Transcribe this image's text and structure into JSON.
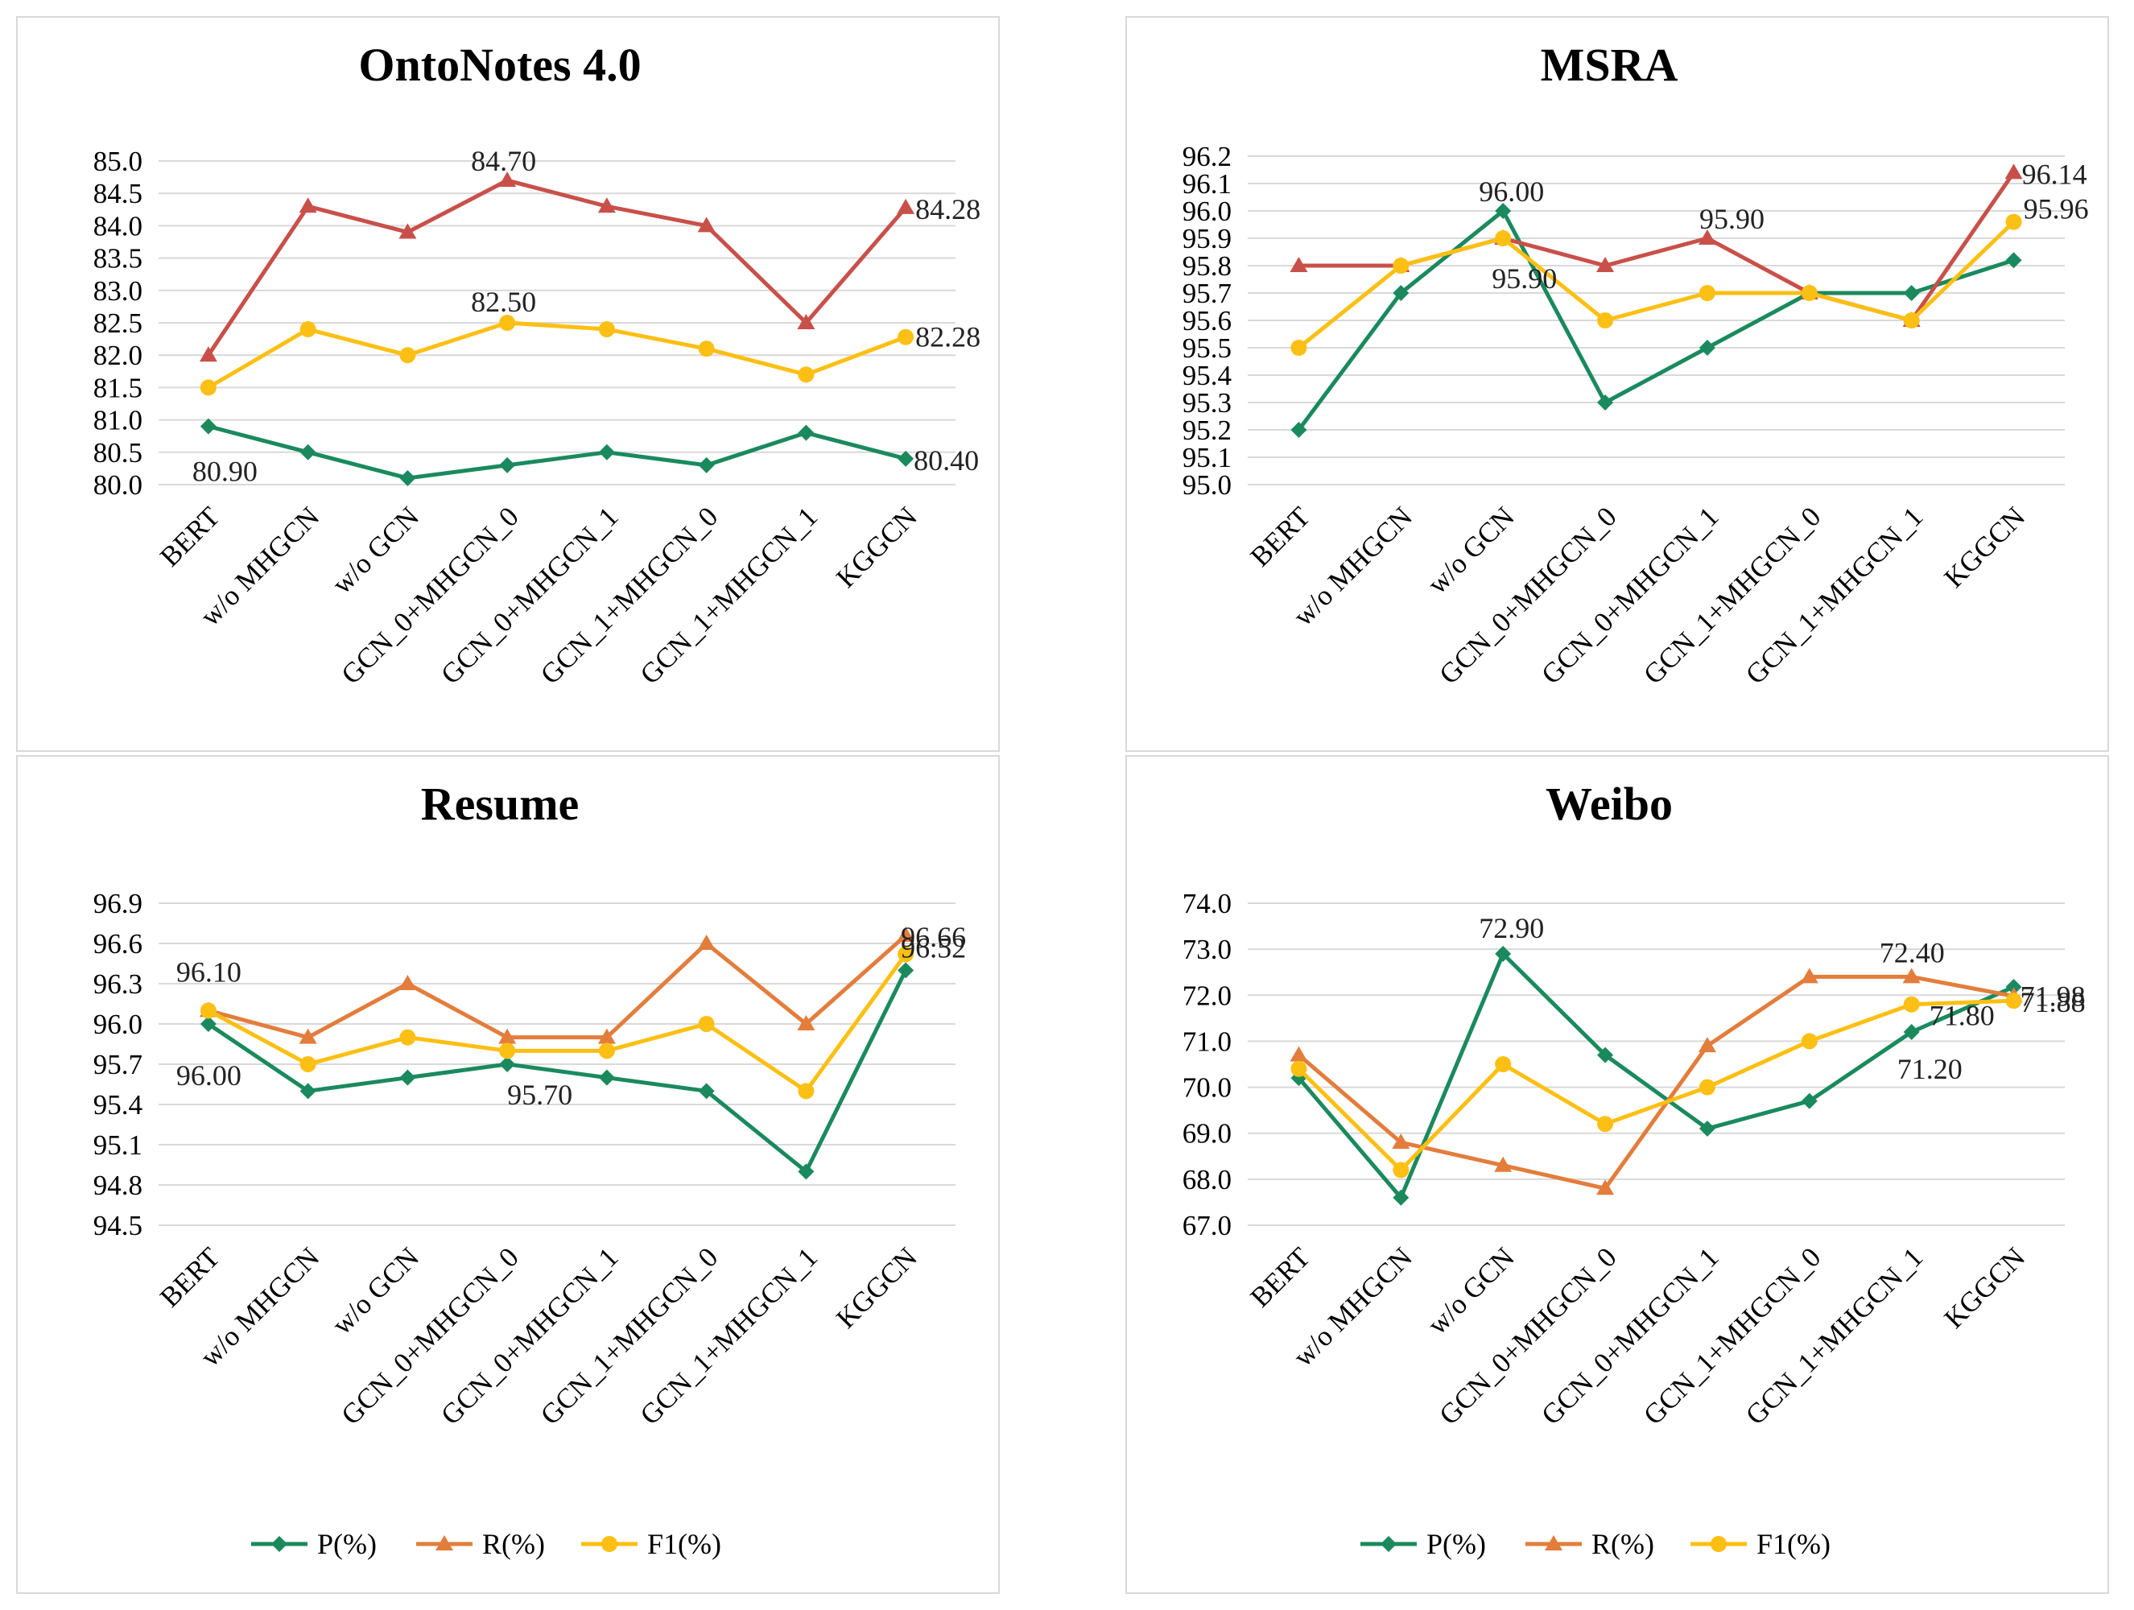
{
  "colors": {
    "p": "#1a8a5e",
    "r_onto": "#c9504a",
    "r": "#e37d3c",
    "f1": "#fcbf13",
    "grid": "#d9d9d9",
    "border": "#d9d9d9"
  },
  "chart_data": [
    {
      "id": "ontonotes",
      "type": "line",
      "title": "OntoNotes 4.0",
      "categories": [
        "BERT",
        "w/o MHGCN",
        "w/o GCN",
        "GCN_0+MHGCN_0",
        "GCN_0+MHGCN_1",
        "GCN_1+MHGCN_0",
        "GCN_1+MHGCN_1",
        "KGGCN"
      ],
      "ylim": [
        80.0,
        85.0
      ],
      "yticks": [
        "80.0",
        "80.5",
        "81.0",
        "81.5",
        "82.0",
        "82.5",
        "83.0",
        "83.5",
        "84.0",
        "84.5",
        "85.0"
      ],
      "legend": false,
      "series": [
        {
          "name": "P(%)",
          "color_key": "p",
          "marker": "diamond",
          "values": [
            80.9,
            80.5,
            80.1,
            80.3,
            80.5,
            80.3,
            80.8,
            80.4
          ]
        },
        {
          "name": "R(%)",
          "color_key": "r_onto",
          "marker": "triangle",
          "values": [
            82.0,
            84.3,
            83.9,
            84.7,
            84.3,
            84.0,
            82.5,
            84.28
          ]
        },
        {
          "name": "F1(%)",
          "color_key": "f1",
          "marker": "circle",
          "values": [
            81.5,
            82.4,
            82.0,
            82.5,
            82.4,
            82.1,
            81.7,
            82.28
          ]
        }
      ],
      "annotations": [
        {
          "text": "80.90",
          "series": 0,
          "index": 0,
          "dx": -20,
          "dy": 68
        },
        {
          "text": "80.40",
          "series": 0,
          "index": 7,
          "dx": 10,
          "dy": 14
        },
        {
          "text": "84.70",
          "series": 1,
          "index": 3,
          "dx": -45,
          "dy": -12
        },
        {
          "text": "84.28",
          "series": 1,
          "index": 7,
          "dx": 12,
          "dy": 14
        },
        {
          "text": "82.50",
          "series": 2,
          "index": 3,
          "dx": -45,
          "dy": -14
        },
        {
          "text": "82.28",
          "series": 2,
          "index": 7,
          "dx": 12,
          "dy": 12
        }
      ]
    },
    {
      "id": "msra",
      "type": "line",
      "title": "MSRA",
      "categories": [
        "BERT",
        "w/o MHGCN",
        "w/o GCN",
        "GCN_0+MHGCN_0",
        "GCN_0+MHGCN_1",
        "GCN_1+MHGCN_0",
        "GCN_1+MHGCN_1",
        "KGGCN"
      ],
      "ylim": [
        95.0,
        96.2
      ],
      "yticks": [
        "95.0",
        "95.1",
        "95.2",
        "95.3",
        "95.4",
        "95.5",
        "95.6",
        "95.7",
        "95.8",
        "95.9",
        "96.0",
        "96.1",
        "96.2"
      ],
      "legend": false,
      "series": [
        {
          "name": "P(%)",
          "color_key": "p",
          "marker": "diamond",
          "values": [
            95.2,
            95.7,
            96.0,
            95.3,
            95.5,
            95.7,
            95.7,
            95.82
          ]
        },
        {
          "name": "R(%)",
          "color_key": "r_onto",
          "marker": "triangle",
          "values": [
            95.8,
            95.8,
            95.9,
            95.8,
            95.9,
            95.7,
            95.6,
            96.14
          ]
        },
        {
          "name": "F1(%)",
          "color_key": "f1",
          "marker": "circle",
          "values": [
            95.5,
            95.8,
            95.9,
            95.6,
            95.7,
            95.7,
            95.6,
            95.96
          ]
        }
      ],
      "annotations": [
        {
          "text": "96.00",
          "series": 0,
          "index": 2,
          "dx": -30,
          "dy": -12
        },
        {
          "text": "95.90",
          "series": 1,
          "index": 4,
          "dx": -10,
          "dy": -12
        },
        {
          "text": "95.90",
          "series": 2,
          "index": 2,
          "dx": -14,
          "dy": 62
        },
        {
          "text": "96.14",
          "series": 1,
          "index": 7,
          "dx": 10,
          "dy": 14
        },
        {
          "text": "95.96",
          "series": 2,
          "index": 7,
          "dx": 12,
          "dy": -4
        }
      ]
    },
    {
      "id": "resume",
      "type": "line",
      "title": "Resume",
      "categories": [
        "BERT",
        "w/o MHGCN",
        "w/o GCN",
        "GCN_0+MHGCN_0",
        "GCN_0+MHGCN_1",
        "GCN_1+MHGCN_0",
        "GCN_1+MHGCN_1",
        "KGGCN"
      ],
      "ylim": [
        94.5,
        96.9
      ],
      "yticks": [
        "94.5",
        "94.8",
        "95.1",
        "95.4",
        "95.7",
        "96.0",
        "96.3",
        "96.6",
        "96.9"
      ],
      "legend": true,
      "series": [
        {
          "name": "P(%)",
          "color_key": "p",
          "marker": "diamond",
          "values": [
            96.0,
            95.5,
            95.6,
            95.7,
            95.6,
            95.5,
            94.9,
            96.4
          ]
        },
        {
          "name": "R(%)",
          "color_key": "r",
          "marker": "triangle",
          "values": [
            96.1,
            95.9,
            96.3,
            95.9,
            95.9,
            96.6,
            96.0,
            96.66
          ]
        },
        {
          "name": "F1(%)",
          "color_key": "f1",
          "marker": "circle",
          "values": [
            96.1,
            95.7,
            95.9,
            95.8,
            95.8,
            96.0,
            95.5,
            96.52
          ]
        }
      ],
      "annotations": [
        {
          "text": "96.10",
          "series": 1,
          "index": 0,
          "dx": -40,
          "dy": -36
        },
        {
          "text": "96.00",
          "series": 0,
          "index": 0,
          "dx": -40,
          "dy": 76
        },
        {
          "text": "95.70",
          "series": 0,
          "index": 3,
          "dx": 0,
          "dy": 50
        },
        {
          "text": "96.66",
          "series": 1,
          "index": 7,
          "dx": -6,
          "dy": 14
        },
        {
          "text": "96.52",
          "series": 2,
          "index": 7,
          "dx": -6,
          "dy": 4
        }
      ]
    },
    {
      "id": "weibo",
      "type": "line",
      "title": "Weibo",
      "categories": [
        "BERT",
        "w/o MHGCN",
        "w/o GCN",
        "GCN_0+MHGCN_0",
        "GCN_0+MHGCN_1",
        "GCN_1+MHGCN_0",
        "GCN_1+MHGCN_1",
        "KGGCN"
      ],
      "ylim": [
        67.0,
        74.0
      ],
      "yticks": [
        "67.0",
        "68.0",
        "69.0",
        "70.0",
        "71.0",
        "72.0",
        "73.0",
        "74.0"
      ],
      "legend": true,
      "series": [
        {
          "name": "P(%)",
          "color_key": "p",
          "marker": "diamond",
          "values": [
            70.2,
            67.6,
            72.9,
            70.7,
            69.1,
            69.7,
            71.2,
            72.18
          ]
        },
        {
          "name": "R(%)",
          "color_key": "r",
          "marker": "triangle",
          "values": [
            70.7,
            68.8,
            68.3,
            67.8,
            70.9,
            72.4,
            72.4,
            71.98
          ]
        },
        {
          "name": "F1(%)",
          "color_key": "f1",
          "marker": "circle",
          "values": [
            70.4,
            68.2,
            70.5,
            69.2,
            70.0,
            71.0,
            71.8,
            71.88
          ]
        }
      ],
      "annotations": [
        {
          "text": "72.90",
          "series": 0,
          "index": 2,
          "dx": -30,
          "dy": -20
        },
        {
          "text": "72.40",
          "series": 1,
          "index": 6,
          "dx": -40,
          "dy": -18
        },
        {
          "text": "71.20",
          "series": 0,
          "index": 6,
          "dx": -18,
          "dy": 58
        },
        {
          "text": "71.80",
          "series": 2,
          "index": 6,
          "dx": 22,
          "dy": 26
        },
        {
          "text": "71.98",
          "series": 1,
          "index": 7,
          "dx": 8,
          "dy": 12
        },
        {
          "text": "71.88",
          "series": 2,
          "index": 7,
          "dx": 8,
          "dy": 14
        }
      ]
    }
  ]
}
